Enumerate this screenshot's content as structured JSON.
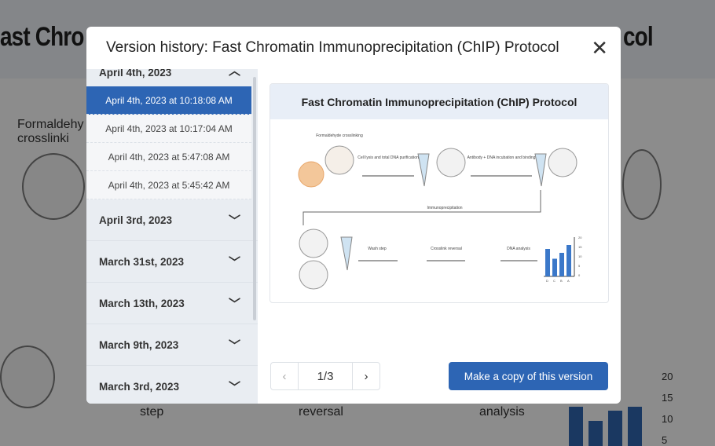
{
  "background": {
    "title_left": "ast Chro",
    "title_right": "col",
    "labels": [
      "Formaldehy\ncrosslinki",
      "step",
      "reversal",
      "analysis"
    ],
    "axis_ticks": [
      "20",
      "15",
      "10",
      "5"
    ]
  },
  "modal": {
    "title": "Version history: Fast Chromatin Immunoprecipitation (ChIP) Protocol",
    "close_icon": "close-icon",
    "groups": [
      {
        "label": "April 4th, 2023",
        "expanded": true,
        "versions": [
          "April 4th, 2023 at 10:18:08 AM",
          "April 4th, 2023 at 10:17:04 AM",
          "April 4th, 2023 at 5:47:08 AM",
          "April 4th, 2023 at 5:45:42 AM"
        ],
        "selected": 0
      },
      {
        "label": "April 3rd, 2023"
      },
      {
        "label": "March 31st, 2023"
      },
      {
        "label": "March 13th, 2023"
      },
      {
        "label": "March 9th, 2023"
      },
      {
        "label": "March 3rd, 2023"
      }
    ],
    "preview": {
      "title": "Fast Chromatin Immunoprecipitation (ChIP) Protocol",
      "labels": {
        "formaldehyde": "Formaldehyde crosslinking",
        "lysis": "Cell lysis and total DNA purification",
        "antibody": "Antibody + DNA incubation and binding",
        "ip": "Immunoprecipitation",
        "wash": "Wash step",
        "reversal": "Crosslink reversal",
        "analysis": "DNA analysis"
      },
      "chart_ticks": [
        "20",
        "15",
        "10",
        "5",
        "0"
      ],
      "chart_categories": [
        "D",
        "C",
        "B",
        "A"
      ]
    },
    "pager": {
      "current": "1/3",
      "prev": "‹",
      "next": "›"
    },
    "copy_button": "Make a copy of this version"
  }
}
